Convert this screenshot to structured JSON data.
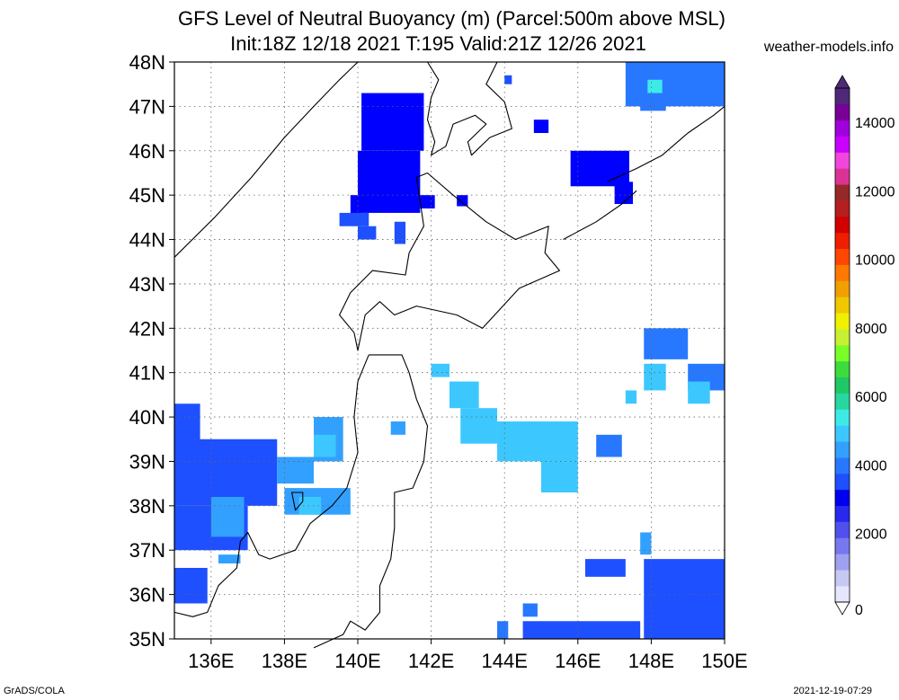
{
  "title_line1": "GFS Level of Neutral Buoyancy (m) (Parcel:500m above MSL)",
  "title_line2": "Init:18Z 12/18 2021 T:195 Valid:21Z 12/26 2021",
  "website": "weather-models.info",
  "footer_left": "GrADS/COLA",
  "footer_right": "2021-12-19-07:29",
  "map": {
    "lon_range": [
      135,
      150
    ],
    "lat_range": [
      35,
      48
    ],
    "lat_labels": [
      "48N",
      "47N",
      "46N",
      "45N",
      "44N",
      "43N",
      "42N",
      "41N",
      "40N",
      "39N",
      "38N",
      "37N",
      "36N",
      "35N"
    ],
    "lon_labels": [
      "136E",
      "138E",
      "140E",
      "142E",
      "144E",
      "146E",
      "148E",
      "150E"
    ],
    "lon_ticks": [
      136,
      138,
      140,
      142,
      144,
      146,
      148,
      150
    ],
    "lat_ticks": [
      48,
      47,
      46,
      45,
      44,
      43,
      42,
      41,
      40,
      39,
      38,
      37,
      36,
      35
    ]
  },
  "colorbar": {
    "labels": [
      "14000",
      "12000",
      "10000",
      "8000",
      "6000",
      "4000",
      "2000",
      "0"
    ],
    "colors": [
      "#e6e6ff",
      "#c8c8f5",
      "#a0a0f0",
      "#7878ee",
      "#5050ee",
      "#2828ee",
      "#0000f0",
      "#1e50ff",
      "#2878ff",
      "#32a0ff",
      "#3cc8ff",
      "#3cebe6",
      "#28d7a0",
      "#1ec864",
      "#3cdc3c",
      "#78ff28",
      "#c8f032",
      "#f0f000",
      "#f0c800",
      "#f0a000",
      "#ff7800",
      "#ff4600",
      "#f01e00",
      "#d20000",
      "#b41e1e",
      "#962828",
      "#dc3296",
      "#f046dc",
      "#c800ff",
      "#a000dc",
      "#780096",
      "#502878"
    ]
  },
  "shading": [
    {
      "color": "#0000ff",
      "cells": [
        [
          140.1,
          47.3,
          1.7,
          1.3
        ],
        [
          140.0,
          46.0,
          1.7,
          1.4
        ],
        [
          139.8,
          45.0,
          0.3,
          0.6
        ],
        [
          141.7,
          45.0,
          0.4,
          0.3
        ],
        [
          142.7,
          45.0,
          0.3,
          0.25
        ],
        [
          144.8,
          46.7,
          0.4,
          0.3
        ],
        [
          145.8,
          46.0,
          1.6,
          0.8
        ],
        [
          147.0,
          45.3,
          0.5,
          0.5
        ]
      ]
    },
    {
      "color": "#1e50ff",
      "cells": [
        [
          139.5,
          44.6,
          0.8,
          0.3
        ],
        [
          140.0,
          44.3,
          0.5,
          0.3
        ],
        [
          141.0,
          44.4,
          0.3,
          0.5
        ],
        [
          135.0,
          40.3,
          0.7,
          0.9
        ],
        [
          135.0,
          39.5,
          2.8,
          1.5
        ],
        [
          135.0,
          38.0,
          2.0,
          1.0
        ],
        [
          135.8,
          37.2,
          0.3,
          0.2
        ],
        [
          135.0,
          36.6,
          0.9,
          0.8
        ],
        [
          144.0,
          47.7,
          0.2,
          0.2
        ],
        [
          146.2,
          36.8,
          1.1,
          0.4
        ],
        [
          147.8,
          36.8,
          2.2,
          1.8
        ],
        [
          144.5,
          35.4,
          3.2,
          0.4
        ],
        [
          148.0,
          35.9,
          2.0,
          0.9
        ]
      ]
    },
    {
      "color": "#2878ff",
      "cells": [
        [
          147.8,
          42.0,
          1.2,
          0.7
        ],
        [
          149.0,
          41.2,
          1.0,
          0.6
        ],
        [
          146.5,
          39.6,
          0.7,
          0.5
        ],
        [
          147.3,
          48.0,
          2.7,
          1.0
        ],
        [
          147.7,
          47.1,
          0.7,
          0.2
        ],
        [
          144.5,
          35.8,
          0.4,
          0.3
        ],
        [
          143.8,
          35.4,
          0.3,
          0.4
        ]
      ]
    },
    {
      "color": "#32a0ff",
      "cells": [
        [
          137.8,
          39.1,
          1.0,
          0.6
        ],
        [
          138.8,
          40.0,
          0.8,
          1.0
        ],
        [
          138.0,
          38.4,
          1.8,
          0.6
        ],
        [
          140.9,
          39.9,
          0.4,
          0.3
        ],
        [
          136.0,
          38.2,
          0.9,
          0.9
        ],
        [
          136.2,
          36.9,
          0.6,
          0.2
        ],
        [
          147.7,
          37.4,
          0.3,
          0.5
        ]
      ]
    },
    {
      "color": "#3cc8ff",
      "cells": [
        [
          142.0,
          41.2,
          0.5,
          0.3
        ],
        [
          142.5,
          40.8,
          0.8,
          0.6
        ],
        [
          142.8,
          40.2,
          1.0,
          0.8
        ],
        [
          143.8,
          39.9,
          2.2,
          0.9
        ],
        [
          145.0,
          39.0,
          1.0,
          0.7
        ],
        [
          147.8,
          41.2,
          0.6,
          0.6
        ],
        [
          149.0,
          40.8,
          0.6,
          0.5
        ],
        [
          147.3,
          40.6,
          0.3,
          0.3
        ],
        [
          138.4,
          38.2,
          0.6,
          0.4
        ],
        [
          138.8,
          39.6,
          0.6,
          0.5
        ]
      ]
    },
    {
      "color": "#3cebe6",
      "cells": [
        [
          147.9,
          47.6,
          0.4,
          0.3
        ]
      ]
    }
  ],
  "coastlines": [
    [
      [
        135.0,
        43.6
      ],
      [
        136.1,
        44.5
      ],
      [
        137.1,
        45.4
      ],
      [
        138.0,
        46.3
      ],
      [
        138.8,
        47.0
      ],
      [
        139.5,
        47.6
      ],
      [
        140.0,
        48.0
      ]
    ],
    [
      [
        141.9,
        48.0
      ],
      [
        142.2,
        47.6
      ],
      [
        142.0,
        47.2
      ],
      [
        141.9,
        46.7
      ],
      [
        142.1,
        46.2
      ],
      [
        142.0,
        45.9
      ],
      [
        142.4,
        46.1
      ],
      [
        142.6,
        46.6
      ],
      [
        143.2,
        46.8
      ],
      [
        143.5,
        46.6
      ],
      [
        143.0,
        46.2
      ],
      [
        143.1,
        45.9
      ],
      [
        143.6,
        46.3
      ],
      [
        144.2,
        46.5
      ],
      [
        144.0,
        47.1
      ],
      [
        143.5,
        47.5
      ],
      [
        143.8,
        48.0
      ]
    ],
    [
      [
        141.6,
        45.4
      ],
      [
        141.9,
        45.5
      ],
      [
        142.6,
        45.0
      ],
      [
        143.5,
        44.4
      ],
      [
        144.3,
        44.0
      ],
      [
        145.2,
        44.3
      ],
      [
        145.1,
        43.7
      ],
      [
        145.5,
        43.3
      ],
      [
        144.4,
        42.9
      ],
      [
        143.4,
        42.0
      ],
      [
        142.7,
        42.3
      ],
      [
        141.6,
        42.5
      ],
      [
        141.0,
        42.3
      ],
      [
        140.6,
        42.6
      ],
      [
        140.2,
        42.3
      ],
      [
        140.0,
        41.5
      ],
      [
        139.9,
        41.9
      ],
      [
        139.5,
        42.3
      ],
      [
        139.8,
        42.8
      ],
      [
        140.4,
        43.3
      ],
      [
        141.3,
        43.2
      ],
      [
        141.4,
        43.7
      ],
      [
        141.8,
        44.3
      ],
      [
        141.6,
        45.4
      ]
    ],
    [
      [
        140.3,
        41.4
      ],
      [
        141.2,
        41.4
      ],
      [
        141.4,
        41.0
      ],
      [
        141.6,
        40.4
      ],
      [
        141.9,
        39.8
      ],
      [
        141.8,
        39.0
      ],
      [
        141.5,
        38.4
      ],
      [
        141.0,
        38.3
      ],
      [
        141.0,
        37.5
      ],
      [
        140.9,
        36.8
      ],
      [
        140.6,
        36.2
      ],
      [
        140.6,
        35.6
      ],
      [
        140.2,
        35.2
      ],
      [
        139.8,
        35.4
      ],
      [
        139.6,
        35.1
      ],
      [
        138.8,
        34.8
      ]
    ],
    [
      [
        140.3,
        41.4
      ],
      [
        140.0,
        40.8
      ],
      [
        139.9,
        40.0
      ],
      [
        140.0,
        39.2
      ],
      [
        139.7,
        38.4
      ],
      [
        139.3,
        38.0
      ],
      [
        138.7,
        37.6
      ],
      [
        138.3,
        37.0
      ],
      [
        137.6,
        36.8
      ],
      [
        137.3,
        36.9
      ],
      [
        137.0,
        37.4
      ],
      [
        136.8,
        37.2
      ],
      [
        136.7,
        36.6
      ],
      [
        136.2,
        36.2
      ],
      [
        135.9,
        35.6
      ],
      [
        135.5,
        35.5
      ],
      [
        135.0,
        35.6
      ]
    ],
    [
      [
        145.6,
        44.0
      ],
      [
        146.5,
        44.4
      ],
      [
        147.2,
        44.8
      ],
      [
        147.6,
        45.1
      ]
    ],
    [
      [
        146.8,
        45.3
      ],
      [
        147.6,
        45.6
      ],
      [
        148.3,
        45.9
      ],
      [
        149.0,
        46.4
      ],
      [
        149.7,
        46.8
      ],
      [
        150.0,
        47.0
      ]
    ],
    [
      [
        138.5,
        38.1
      ],
      [
        138.3,
        37.9
      ],
      [
        138.2,
        38.3
      ],
      [
        138.5,
        38.3
      ],
      [
        138.5,
        38.1
      ]
    ]
  ]
}
